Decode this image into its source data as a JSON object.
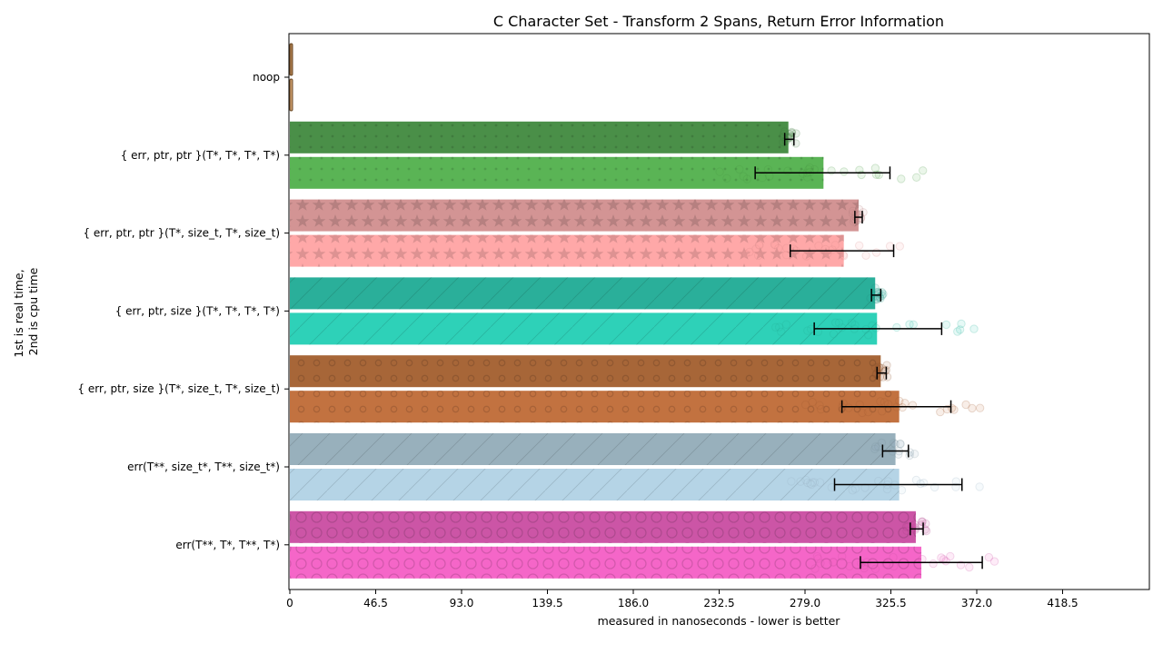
{
  "chart_data": {
    "type": "bar",
    "orientation": "horizontal",
    "title": "C Character Set - Transform 2 Spans, Return Error Information",
    "xlabel": "measured in nanoseconds - lower is better",
    "ylabel_lines": [
      "1st is real time,",
      "2nd is cpu time"
    ],
    "xlim": [
      0,
      465
    ],
    "xticks": [
      "0",
      "46.5",
      "93.0",
      "139.5",
      "186.0",
      "232.5",
      "279.0",
      "325.5",
      "372.0",
      "418.5"
    ],
    "grid": false,
    "categories": [
      "noop",
      "{ err, ptr, ptr }(T*, T*, T*, T*)",
      "{ err, ptr, ptr }(T*, size_t, T*, size_t)",
      "{ err, ptr, size }(T*, T*, T*, T*)",
      "{ err, ptr, size }(T*, size_t, T*, size_t)",
      "err(T**, size_t*, T**, size_t*)",
      "err(T**, T*, T**, T*)"
    ],
    "series": [
      {
        "role": "real time",
        "values": [
          1.5,
          270,
          308,
          317,
          320,
          328,
          339
        ],
        "error_low": [
          1.0,
          268,
          306,
          315,
          318,
          321,
          336
        ],
        "error_high": [
          2.0,
          273,
          310,
          320,
          323,
          335,
          343
        ]
      },
      {
        "role": "cpu time",
        "values": [
          1.5,
          289,
          300,
          318,
          330,
          330,
          342
        ],
        "error_low": [
          1.0,
          252,
          271,
          284,
          299,
          295,
          309
        ],
        "error_high": [
          2.0,
          325,
          327,
          353,
          358,
          364,
          375
        ]
      }
    ],
    "bar_styles": [
      {
        "real": "#a8794a",
        "cpu": "#c89a6a",
        "pattern": "none"
      },
      {
        "real": "#4a8f48",
        "cpu": "#5ab455",
        "pattern": "dots"
      },
      {
        "real": "#d39494",
        "cpu": "#ffa8a8",
        "pattern": "stars"
      },
      {
        "real": "#2aaf9a",
        "cpu": "#2ed1b8",
        "pattern": "diag"
      },
      {
        "real": "#a76638",
        "cpu": "#c27240",
        "pattern": "rings"
      },
      {
        "real": "#98b0bc",
        "cpu": "#b5d4e6",
        "pattern": "diag-light"
      },
      {
        "real": "#cc55a6",
        "cpu": "#f566c8",
        "pattern": "big-rings"
      }
    ]
  }
}
